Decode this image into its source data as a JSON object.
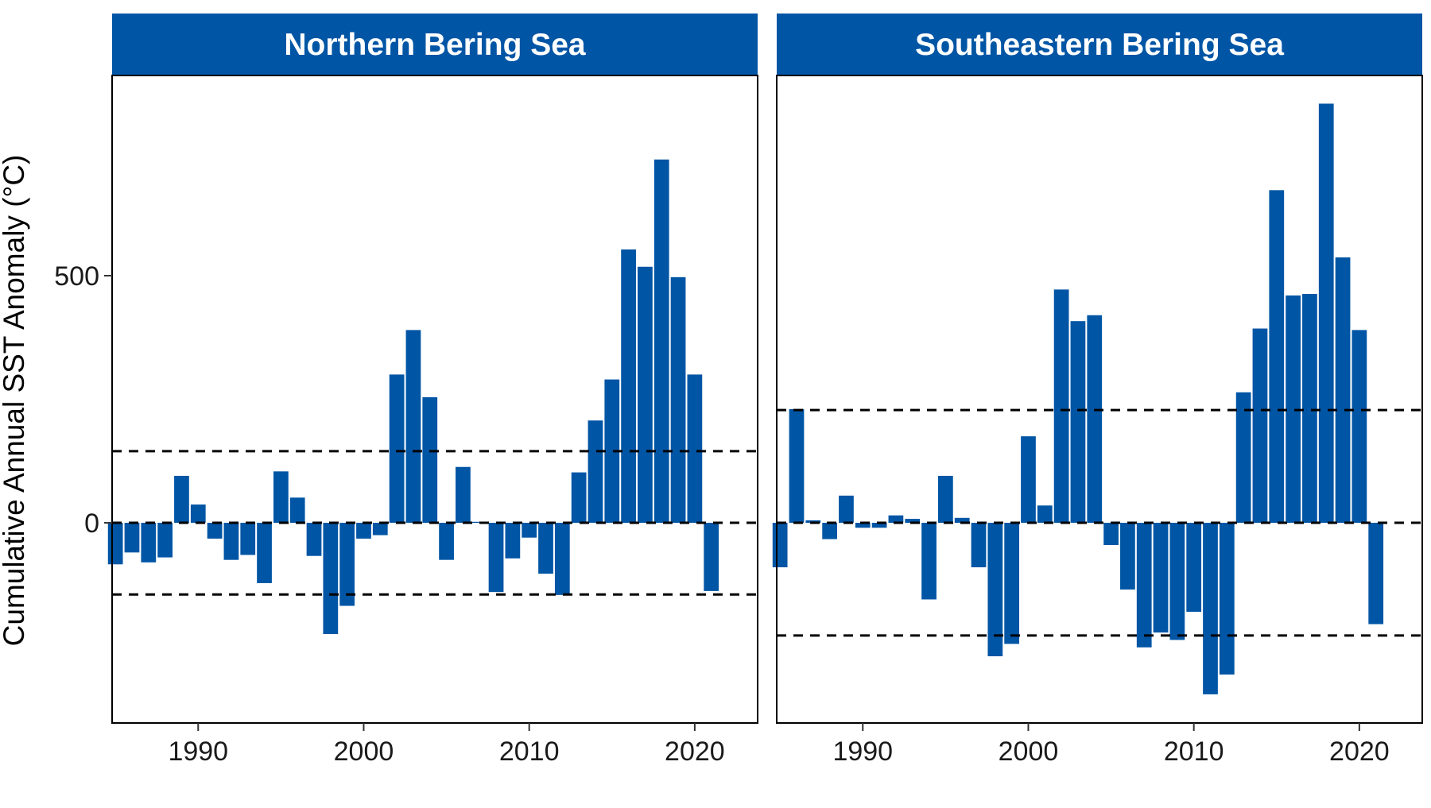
{
  "colors": {
    "bar": "#0055a5",
    "strip": "#0055a5",
    "strip_text": "#ffffff",
    "panel_border": "#000000",
    "reference_line": "#000000",
    "background": "#ffffff"
  },
  "y_axis_title": "Cumulative Annual SST Anomaly (°C)",
  "chart_data": [
    {
      "type": "bar",
      "title": "Northern Bering Sea",
      "ylabel": "Cumulative Annual SST Anomaly (°C)",
      "x_ticks": [
        1990,
        2000,
        2010,
        2020
      ],
      "y_ticks": [
        0,
        500
      ],
      "xlim": [
        1984.8,
        2023.8
      ],
      "ylim": [
        -405,
        905
      ],
      "grid": false,
      "reference_lines": [
        {
          "y": 145,
          "style": "dashed"
        },
        {
          "y": 0,
          "style": "dashed"
        },
        {
          "y": -145,
          "style": "dashed"
        }
      ],
      "x": [
        1985,
        1986,
        1987,
        1988,
        1989,
        1990,
        1991,
        1992,
        1993,
        1994,
        1995,
        1996,
        1997,
        1998,
        1999,
        2000,
        2001,
        2002,
        2003,
        2004,
        2005,
        2006,
        2007,
        2008,
        2009,
        2010,
        2011,
        2012,
        2013,
        2014,
        2015,
        2016,
        2017,
        2018,
        2019,
        2020,
        2021,
        2022
      ],
      "values": [
        -84,
        -60,
        -80,
        -70,
        95,
        37,
        -32,
        -75,
        -65,
        -122,
        104,
        51,
        -67,
        -225,
        -168,
        -32,
        -25,
        300,
        390,
        254,
        -75,
        113,
        2,
        -140,
        -72,
        -30,
        -103,
        -146,
        102,
        207,
        290,
        553,
        518,
        735,
        497,
        300,
        -138,
        0
      ]
    },
    {
      "type": "bar",
      "title": "Southeastern Bering Sea",
      "ylabel": "",
      "x_ticks": [
        1990,
        2000,
        2010,
        2020
      ],
      "y_ticks": [
        0,
        500
      ],
      "xlim": [
        1984.8,
        2023.8
      ],
      "ylim": [
        -405,
        905
      ],
      "grid": false,
      "reference_lines": [
        {
          "y": 228,
          "style": "dashed"
        },
        {
          "y": 0,
          "style": "dashed"
        },
        {
          "y": -228,
          "style": "dashed"
        }
      ],
      "x": [
        1985,
        1986,
        1987,
        1988,
        1989,
        1990,
        1991,
        1992,
        1993,
        1994,
        1995,
        1996,
        1997,
        1998,
        1999,
        2000,
        2001,
        2002,
        2003,
        2004,
        2005,
        2006,
        2007,
        2008,
        2009,
        2010,
        2011,
        2012,
        2013,
        2014,
        2015,
        2016,
        2017,
        2018,
        2019,
        2020,
        2021,
        2022
      ],
      "values": [
        -90,
        230,
        5,
        -33,
        55,
        -10,
        -10,
        15,
        8,
        -155,
        95,
        10,
        -90,
        -270,
        -245,
        175,
        35,
        472,
        408,
        420,
        -45,
        -135,
        -252,
        -222,
        -237,
        -180,
        -347,
        -307,
        264,
        393,
        673,
        460,
        463,
        848,
        537,
        390,
        -205,
        0
      ]
    }
  ]
}
